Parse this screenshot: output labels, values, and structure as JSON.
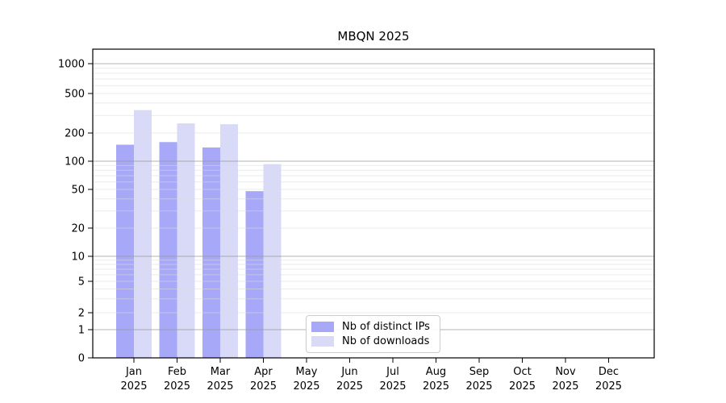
{
  "window": {
    "background": "#ffffff"
  },
  "chart_data": {
    "type": "bar",
    "title": "MBQN 2025",
    "xlabel": "",
    "ylabel": "",
    "yscale": "symlog",
    "grid": true,
    "legend_position": "inside-bottom-center",
    "y_ticks": [
      0,
      1,
      2,
      5,
      10,
      20,
      50,
      100,
      200,
      500,
      1000
    ],
    "y_tick_labels": [
      "0",
      "1",
      "2",
      "5",
      "10",
      "20",
      "50",
      "100",
      "200",
      "500",
      "1000"
    ],
    "ylim": [
      0,
      1400
    ],
    "categories": [
      "Jan 2025",
      "Feb 2025",
      "Mar 2025",
      "Apr 2025",
      "May 2025",
      "Jun 2025",
      "Jul 2025",
      "Aug 2025",
      "Sep 2025",
      "Oct 2025",
      "Nov 2025",
      "Dec 2025"
    ],
    "series": [
      {
        "name": "Nb of distinct IPs",
        "color": "#a8a8f8",
        "values": [
          150,
          160,
          140,
          48,
          null,
          null,
          null,
          null,
          null,
          null,
          null,
          null
        ]
      },
      {
        "name": "Nb of downloads",
        "color": "#d9d9f8",
        "values": [
          340,
          250,
          245,
          93,
          null,
          null,
          null,
          null,
          null,
          null,
          null,
          null
        ]
      }
    ]
  },
  "colors": {
    "major_grid": "#9a9a9a",
    "minor_grid": "#dcdcdc",
    "axis": "#000000",
    "tick_text": "#000000"
  }
}
